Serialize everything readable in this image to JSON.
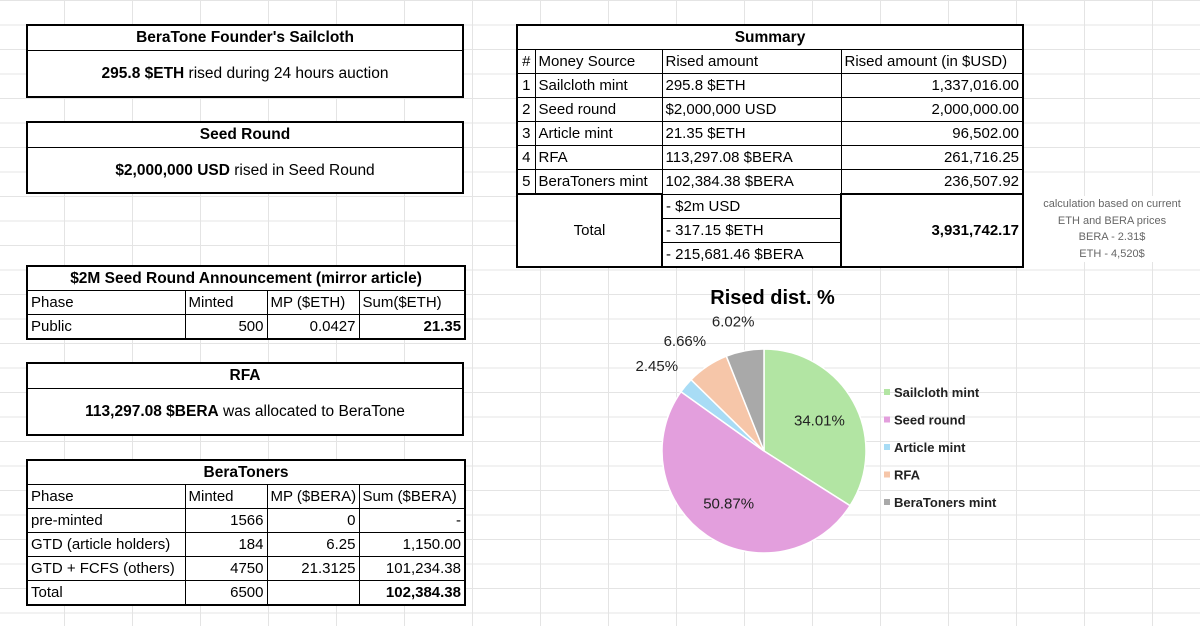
{
  "sailcloth": {
    "title": "BeraTone Founder's Sailcloth",
    "amount": "295.8 $ETH",
    "desc": " rised during 24 hours auction"
  },
  "seed": {
    "title": "Seed Round",
    "amount": "$2,000,000 USD",
    "desc": " rised in Seed Round"
  },
  "mirror": {
    "title": "$2M Seed Round Announcement (mirror article)",
    "headers": [
      "Phase",
      "Minted",
      "MP ($ETH)",
      "Sum($ETH)"
    ],
    "row": [
      "Public",
      "500",
      "0.0427",
      "21.35"
    ]
  },
  "rfa": {
    "title": "RFA",
    "amount": "113,297.08 $BERA",
    "desc": " was allocated to BeraTone"
  },
  "beratoners": {
    "title": "BeraToners",
    "headers": [
      "Phase",
      "Minted",
      "MP ($BERA)",
      "Sum ($BERA)"
    ],
    "rows": [
      [
        "pre-minted",
        "1566",
        "0",
        "-"
      ],
      [
        "GTD (article holders)",
        "184",
        "6.25",
        "1,150.00"
      ],
      [
        "GTD + FCFS (others)",
        "4750",
        "21.3125",
        "101,234.38"
      ],
      [
        "Total",
        "6500",
        "",
        "102,384.38"
      ]
    ]
  },
  "summary": {
    "title": "Summary",
    "headers": [
      "#",
      "Money Source",
      "Rised amount",
      "Rised amount (in $USD)"
    ],
    "rows": [
      [
        "1",
        "Sailcloth mint",
        "295.8 $ETH",
        "1,337,016.00"
      ],
      [
        "2",
        "Seed round",
        "$2,000,000 USD",
        "2,000,000.00"
      ],
      [
        "3",
        "Article mint",
        "21.35 $ETH",
        "96,502.00"
      ],
      [
        "4",
        "RFA",
        "113,297.08 $BERA",
        "261,716.25"
      ],
      [
        "5",
        "BeraToners mint",
        "102,384.38 $BERA",
        "236,507.92"
      ]
    ],
    "total_label": "Total",
    "total_lines": [
      "- $2m USD",
      "- 317.15 $ETH",
      "- 215,681.46 $BERA"
    ],
    "total_usd": "3,931,742.17"
  },
  "note": {
    "lines": [
      "calculation based on current",
      "ETH and BERA prices",
      "BERA - 2.31$",
      "ETH - 4,520$"
    ]
  },
  "chart_data": {
    "type": "pie",
    "title": "Rised dist. %",
    "categories": [
      "Sailcloth mint",
      "Seed round",
      "Article mint",
      "RFA",
      "BeraToners mint"
    ],
    "values": [
      34.01,
      50.87,
      2.45,
      6.66,
      6.02
    ],
    "labels": [
      "34.01%",
      "50.87%",
      "2.45%",
      "6.66%",
      "6.02%"
    ],
    "colors": [
      "#b2e5a3",
      "#e39fdd",
      "#a8dcf5",
      "#f6c6a9",
      "#a9a9a9"
    ],
    "legend_position": "right"
  }
}
